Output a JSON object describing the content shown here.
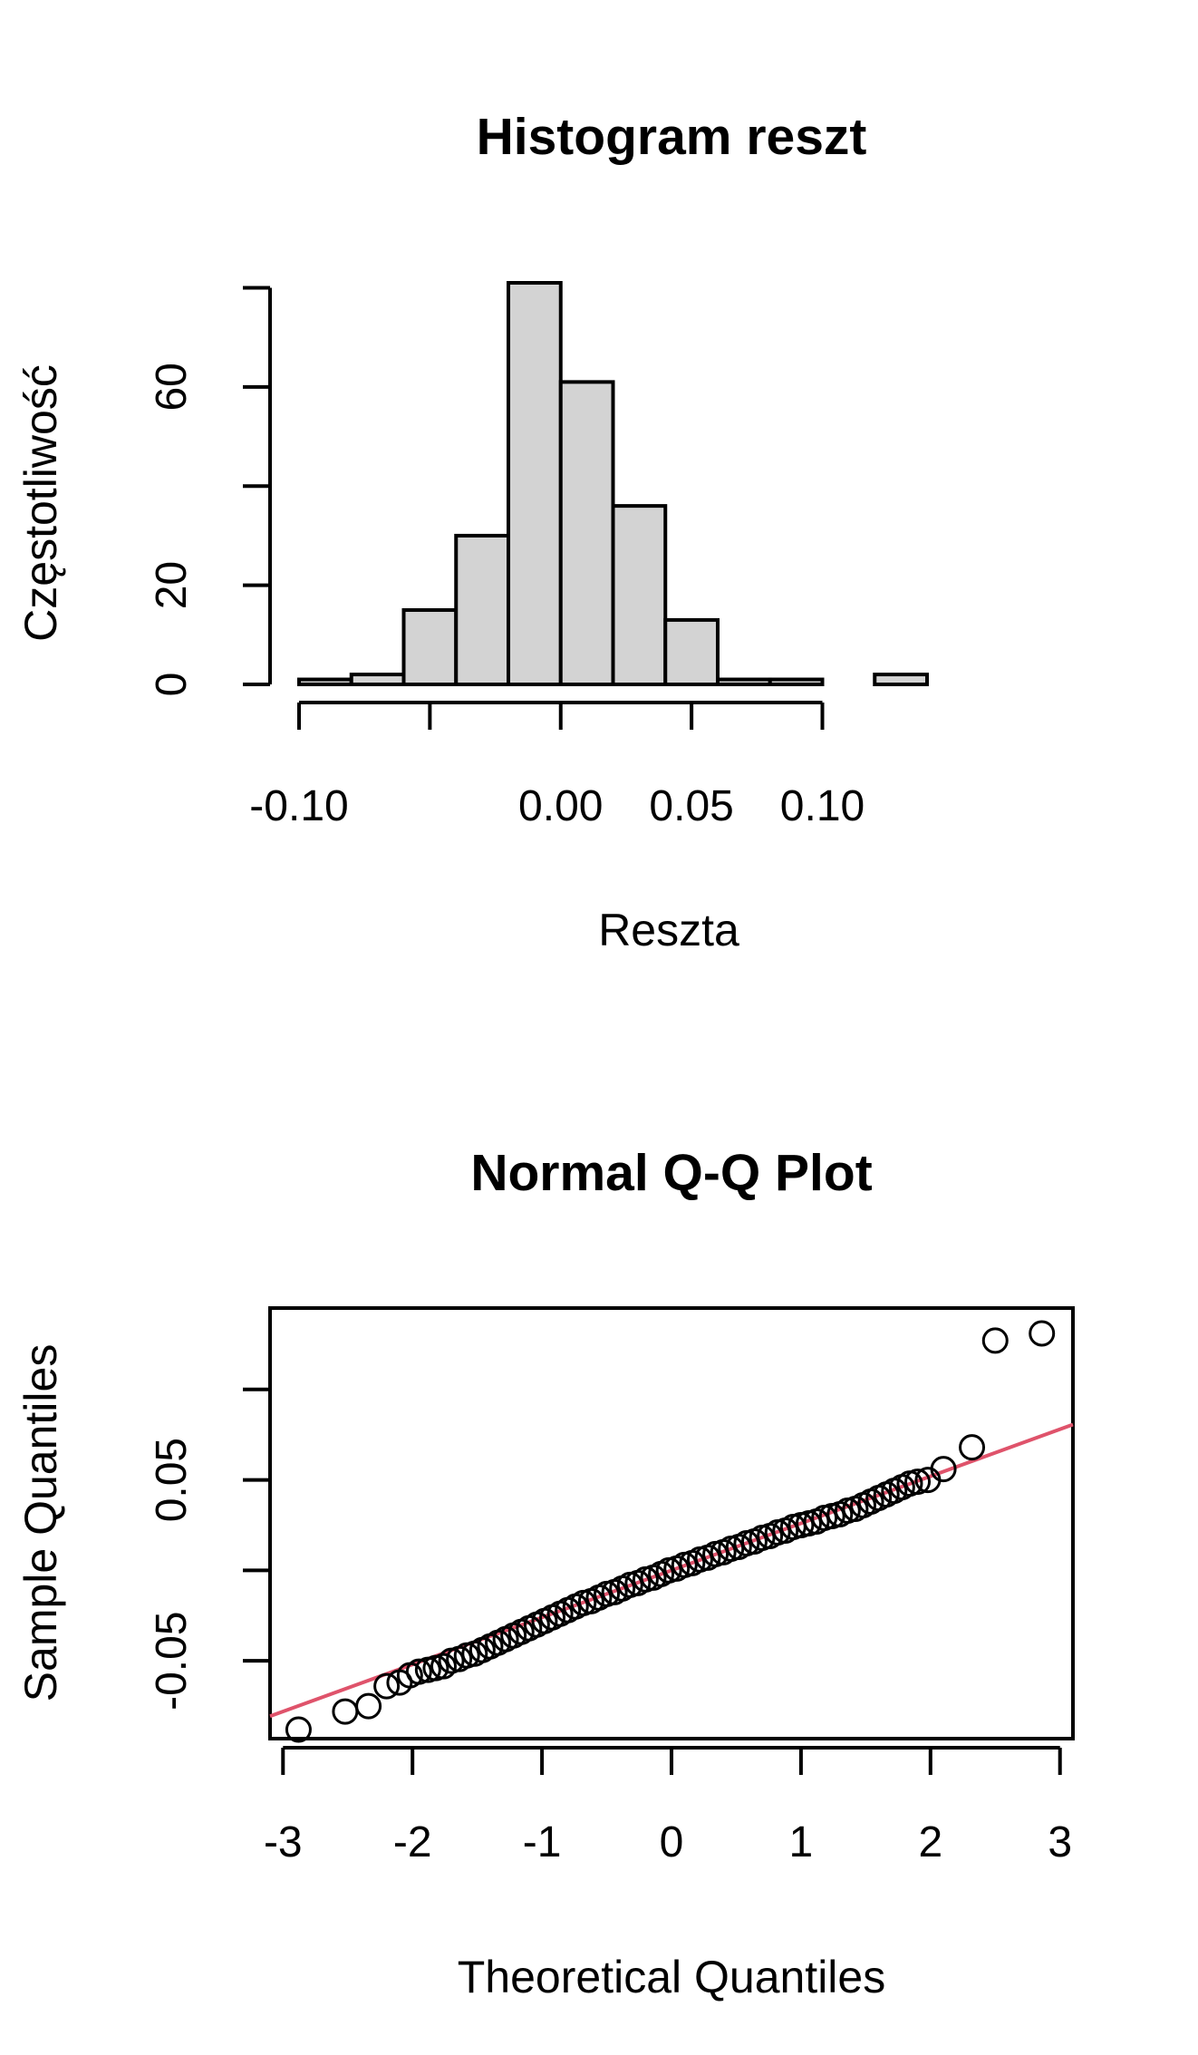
{
  "chart_data": [
    {
      "type": "bar",
      "title": "Histogram reszt",
      "xlabel": "Reszta",
      "ylabel": "Częstotliwość",
      "bin_edges": [
        -0.1,
        -0.08,
        -0.06,
        -0.04,
        -0.02,
        0.0,
        0.02,
        0.04,
        0.06,
        0.08,
        0.1,
        0.12,
        0.14
      ],
      "values": [
        1,
        2,
        15,
        30,
        81,
        61,
        36,
        13,
        1,
        1,
        0,
        2
      ],
      "xlim": [
        -0.1,
        0.14
      ],
      "ylim": [
        0,
        81
      ],
      "x_ticks": [
        -0.1,
        -0.05,
        0.0,
        0.05,
        0.1
      ],
      "x_tick_labels": [
        "-0.10",
        "",
        "0.00",
        "0.05",
        "0.10"
      ],
      "y_ticks": [
        0,
        20,
        40,
        60,
        80
      ],
      "y_tick_labels": [
        "0",
        "20",
        "",
        "60",
        ""
      ],
      "grid": false
    },
    {
      "type": "scatter",
      "title": "Normal Q-Q Plot",
      "xlabel": "Theoretical Quantiles",
      "ylabel": "Sample Quantiles",
      "xlim": [
        -3.1,
        3.1
      ],
      "ylim": [
        -0.093,
        0.145
      ],
      "x_ticks": [
        -3,
        -2,
        -1,
        0,
        1,
        2,
        3
      ],
      "x_tick_labels": [
        "-3",
        "-2",
        "-1",
        "0",
        "1",
        "2",
        "3"
      ],
      "y_ticks": [
        -0.05,
        0.0,
        0.05,
        0.1
      ],
      "y_tick_labels": [
        "-0.05",
        "",
        "0.05",
        ""
      ],
      "reference_line": {
        "intercept": 0.0,
        "slope": 0.026,
        "color": "#DF536B"
      },
      "points": [
        [
          -2.88,
          -0.088
        ],
        [
          -2.52,
          -0.078
        ],
        [
          -2.34,
          -0.075
        ],
        [
          -2.2,
          -0.064
        ],
        [
          -2.1,
          -0.062
        ],
        [
          -2.02,
          -0.058
        ],
        [
          -1.95,
          -0.056
        ],
        [
          -1.88,
          -0.055
        ],
        [
          -1.82,
          -0.054
        ],
        [
          -1.76,
          -0.053
        ],
        [
          -1.7,
          -0.05
        ],
        [
          -1.64,
          -0.049
        ],
        [
          -1.58,
          -0.047
        ],
        [
          -1.52,
          -0.046
        ],
        [
          -1.46,
          -0.044
        ],
        [
          -1.4,
          -0.042
        ],
        [
          -1.34,
          -0.04
        ],
        [
          -1.28,
          -0.038
        ],
        [
          -1.22,
          -0.036
        ],
        [
          -1.16,
          -0.034
        ],
        [
          -1.1,
          -0.032
        ],
        [
          -1.04,
          -0.03
        ],
        [
          -0.98,
          -0.028
        ],
        [
          -0.92,
          -0.026
        ],
        [
          -0.86,
          -0.024
        ],
        [
          -0.8,
          -0.022
        ],
        [
          -0.74,
          -0.02
        ],
        [
          -0.68,
          -0.018
        ],
        [
          -0.62,
          -0.017
        ],
        [
          -0.56,
          -0.015
        ],
        [
          -0.5,
          -0.013
        ],
        [
          -0.44,
          -0.012
        ],
        [
          -0.38,
          -0.01
        ],
        [
          -0.32,
          -0.008
        ],
        [
          -0.26,
          -0.007
        ],
        [
          -0.2,
          -0.005
        ],
        [
          -0.14,
          -0.004
        ],
        [
          -0.08,
          -0.002
        ],
        [
          -0.02,
          0.0
        ],
        [
          0.04,
          0.001
        ],
        [
          0.1,
          0.003
        ],
        [
          0.16,
          0.004
        ],
        [
          0.22,
          0.006
        ],
        [
          0.28,
          0.007
        ],
        [
          0.34,
          0.009
        ],
        [
          0.4,
          0.01
        ],
        [
          0.46,
          0.012
        ],
        [
          0.52,
          0.013
        ],
        [
          0.58,
          0.015
        ],
        [
          0.64,
          0.016
        ],
        [
          0.7,
          0.018
        ],
        [
          0.76,
          0.019
        ],
        [
          0.82,
          0.021
        ],
        [
          0.88,
          0.022
        ],
        [
          0.94,
          0.024
        ],
        [
          1.0,
          0.025
        ],
        [
          1.06,
          0.026
        ],
        [
          1.12,
          0.027
        ],
        [
          1.18,
          0.029
        ],
        [
          1.24,
          0.03
        ],
        [
          1.3,
          0.031
        ],
        [
          1.36,
          0.033
        ],
        [
          1.42,
          0.034
        ],
        [
          1.48,
          0.036
        ],
        [
          1.54,
          0.038
        ],
        [
          1.6,
          0.04
        ],
        [
          1.66,
          0.042
        ],
        [
          1.72,
          0.044
        ],
        [
          1.78,
          0.046
        ],
        [
          1.84,
          0.048
        ],
        [
          1.9,
          0.049
        ],
        [
          1.98,
          0.05
        ],
        [
          2.1,
          0.056
        ],
        [
          2.32,
          0.068
        ],
        [
          2.5,
          0.127
        ],
        [
          2.86,
          0.131
        ]
      ],
      "grid": false
    }
  ]
}
